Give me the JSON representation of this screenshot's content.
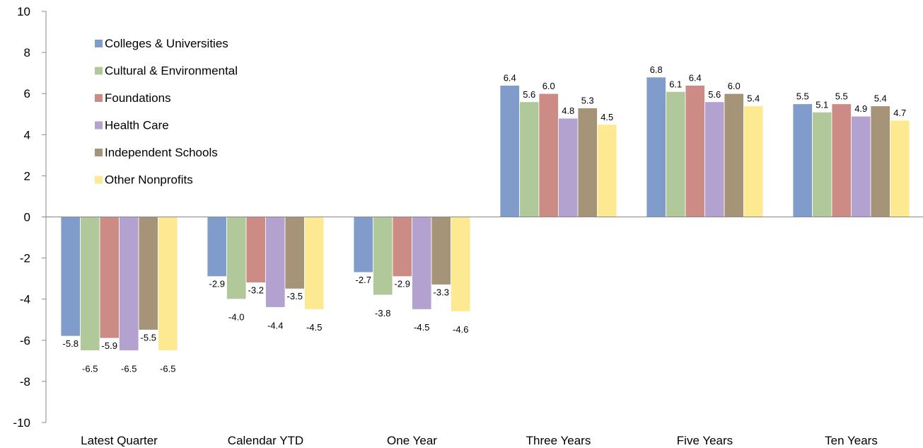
{
  "chart_data": {
    "type": "bar",
    "categories": [
      "Latest Quarter",
      "Calendar YTD",
      "One Year",
      "Three Years",
      "Five Years",
      "Ten Years"
    ],
    "series": [
      {
        "name": "Colleges & Universities",
        "color": "#7f9ccb",
        "values": [
          -5.8,
          -2.9,
          -2.7,
          6.4,
          6.8,
          5.5
        ],
        "labels": [
          "-5.8",
          "-2.9",
          "-2.7",
          "6.4",
          "6.8",
          "5.5"
        ]
      },
      {
        "name": "Cultural & Environmental",
        "color": "#b1c99a",
        "values": [
          -6.5,
          -4.0,
          -3.8,
          5.6,
          6.1,
          5.1
        ],
        "labels": [
          "-6.5",
          "-4.0",
          "-3.8",
          "5.6",
          "6.1",
          "5.1"
        ]
      },
      {
        "name": "Foundations",
        "color": "#cc8b84",
        "values": [
          -5.9,
          -3.2,
          -2.9,
          6.0,
          6.4,
          5.5
        ],
        "labels": [
          "-5.9",
          "-3.2",
          "-2.9",
          "6.0",
          "6.4",
          "5.5"
        ]
      },
      {
        "name": "Health Care",
        "color": "#b3a2cf",
        "values": [
          -6.5,
          -4.4,
          -4.5,
          4.8,
          5.6,
          4.9
        ],
        "labels": [
          "-6.5",
          "-4.4",
          "-4.5",
          "4.8",
          "5.6",
          "4.9"
        ]
      },
      {
        "name": "Independent Schools",
        "color": "#a69479",
        "values": [
          -5.5,
          -3.5,
          -3.3,
          5.3,
          6.0,
          5.4
        ],
        "labels": [
          "-5.5",
          "-3.5",
          "-3.3",
          "5.3",
          "6.0",
          "5.4"
        ]
      },
      {
        "name": "Other Nonprofits",
        "color": "#fde992",
        "values": [
          -6.5,
          -4.5,
          -4.6,
          4.5,
          5.4,
          4.7
        ],
        "labels": [
          "-6.5",
          "-4.5",
          "-4.6",
          "4.5",
          "5.4",
          "4.7"
        ]
      }
    ],
    "ylim": [
      -10,
      10
    ],
    "yticks": [
      "10",
      "8",
      "6",
      "4",
      "2",
      "0",
      "-2",
      "-4",
      "-6",
      "-8",
      "-10"
    ],
    "legend_position": "top-left",
    "grid": false
  }
}
